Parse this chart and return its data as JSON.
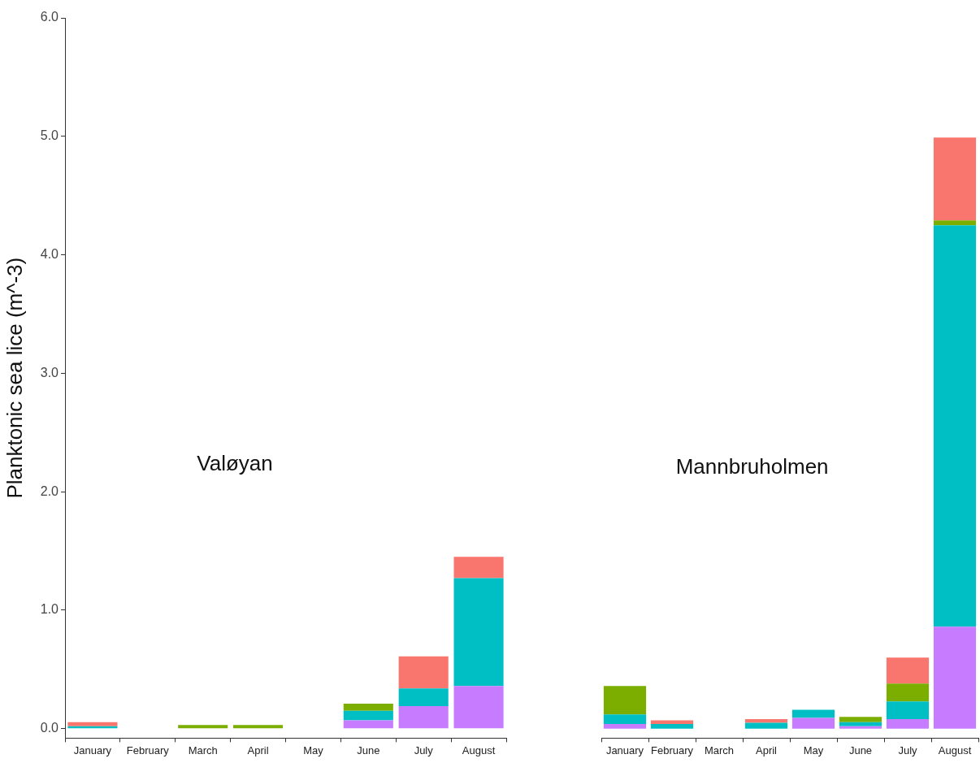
{
  "chart_data": [
    {
      "type": "bar",
      "stacked": true,
      "ylabel": "Planktonic sea lice (m^-3)",
      "annotations": [
        "Valøyan"
      ],
      "categories": [
        "January",
        "February",
        "March",
        "April",
        "May",
        "June",
        "July",
        "August"
      ],
      "series": [
        {
          "color": "#c77cff",
          "values": [
            0,
            0,
            0,
            0,
            0,
            0.07,
            0.19,
            0.36
          ]
        },
        {
          "color": "#00bfc4",
          "values": [
            0.02,
            0,
            0,
            0,
            0,
            0.08,
            0.15,
            0.91
          ]
        },
        {
          "color": "#7cae00",
          "values": [
            0,
            0,
            0.03,
            0.03,
            0,
            0.06,
            0,
            0
          ]
        },
        {
          "color": "#f8766d",
          "values": [
            0.035,
            0,
            0,
            0,
            0,
            0,
            0.27,
            0.18
          ]
        }
      ],
      "ylim": [
        -0.08,
        6.0
      ],
      "yticks": [
        {
          "value": 0,
          "label": "0.0"
        },
        {
          "value": 1,
          "label": "1.0"
        },
        {
          "value": 2,
          "label": "2.0"
        },
        {
          "value": 3,
          "label": "3.0"
        },
        {
          "value": 4,
          "label": "4.0"
        },
        {
          "value": 5,
          "label": "5.0"
        },
        {
          "value": 6,
          "label": "6.0"
        }
      ],
      "grid": false,
      "legend": false
    },
    {
      "type": "bar",
      "stacked": true,
      "annotations": [
        "Mannbruholmen"
      ],
      "categories": [
        "January",
        "February",
        "March",
        "April",
        "May",
        "June",
        "July",
        "August"
      ],
      "series": [
        {
          "color": "#c77cff",
          "values": [
            0.04,
            0,
            0,
            0,
            0.09,
            0.02,
            0.08,
            0.86
          ]
        },
        {
          "color": "#00bfc4",
          "values": [
            0.08,
            0.04,
            0,
            0.05,
            0.07,
            0.035,
            0.15,
            3.39
          ]
        },
        {
          "color": "#7cae00",
          "values": [
            0.24,
            0,
            0,
            0,
            0,
            0.045,
            0.15,
            0.04
          ]
        },
        {
          "color": "#f8766d",
          "values": [
            0,
            0.03,
            0,
            0.03,
            0,
            0,
            0.22,
            0.7
          ]
        }
      ],
      "ylim": [
        -0.08,
        6.0
      ],
      "tick_labels": "x",
      "grid": false,
      "legend": false
    }
  ]
}
